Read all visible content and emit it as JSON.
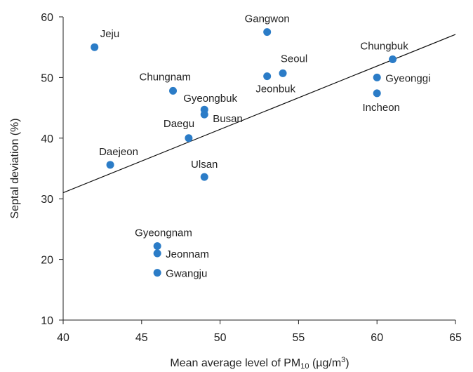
{
  "chart_data": {
    "type": "scatter",
    "xlabel_prefix": "Mean average level of PM",
    "xlabel_subscript": "10",
    "xlabel_unit_prefix": " (µg/m",
    "xlabel_superscript": "3",
    "xlabel_unit_suffix": ")",
    "ylabel": "Septal deviation (%)",
    "xlim": [
      40,
      65
    ],
    "ylim": [
      10,
      60
    ],
    "xticks": [
      40,
      45,
      50,
      55,
      60,
      65
    ],
    "yticks": [
      10,
      20,
      30,
      40,
      50,
      60
    ],
    "grid": false,
    "point_color": "#2b7cc7",
    "points": [
      {
        "label": "Jeju",
        "x": 42,
        "y": 55
      },
      {
        "label": "Gangwon",
        "x": 53,
        "y": 57.5
      },
      {
        "label": "Chungbuk",
        "x": 61,
        "y": 53
      },
      {
        "label": "Seoul",
        "x": 54,
        "y": 50.7
      },
      {
        "label": "Jeonbuk",
        "x": 53,
        "y": 50.2
      },
      {
        "label": "Gyeonggi",
        "x": 60,
        "y": 50
      },
      {
        "label": "Incheon",
        "x": 60,
        "y": 47.4
      },
      {
        "label": "Chungnam",
        "x": 47,
        "y": 47.8
      },
      {
        "label": "Gyeongbuk",
        "x": 49,
        "y": 44.7
      },
      {
        "label": "Busan",
        "x": 49,
        "y": 43.9
      },
      {
        "label": "Daegu",
        "x": 48,
        "y": 40
      },
      {
        "label": "Daejeon",
        "x": 43,
        "y": 35.6
      },
      {
        "label": "Ulsan",
        "x": 49,
        "y": 33.6
      },
      {
        "label": "Gyeongnam",
        "x": 46,
        "y": 22.2
      },
      {
        "label": "Jeonnam",
        "x": 46,
        "y": 21
      },
      {
        "label": "Gwangju",
        "x": 46,
        "y": 17.8
      }
    ],
    "trendline": {
      "x": [
        40,
        65
      ],
      "y": [
        31,
        57.1
      ]
    }
  }
}
